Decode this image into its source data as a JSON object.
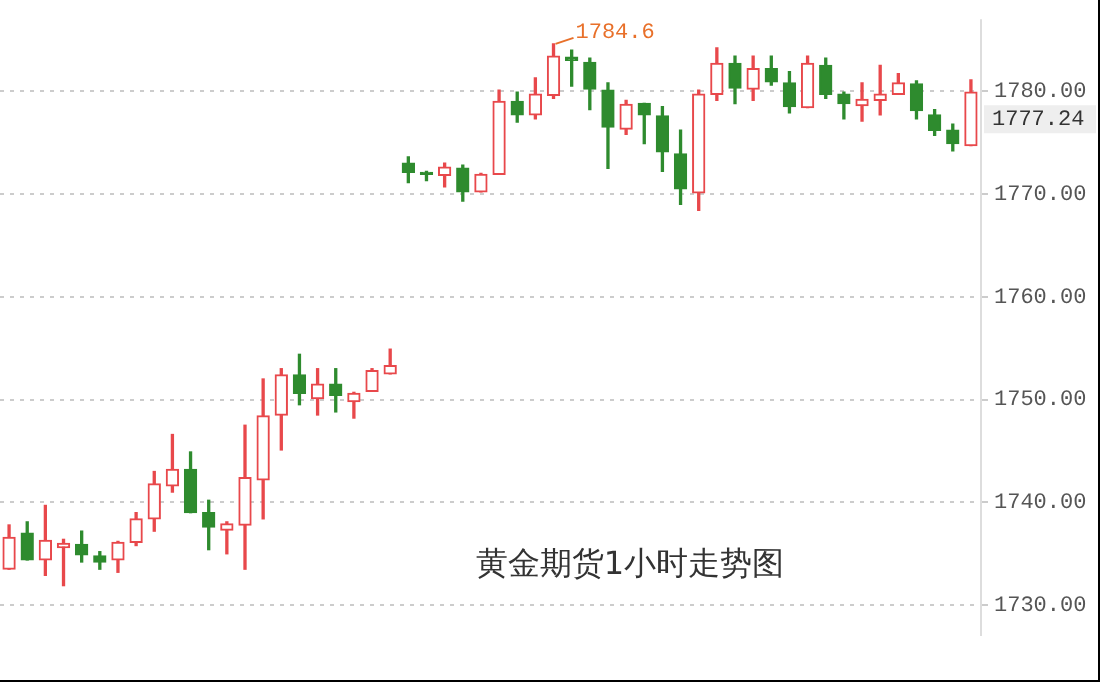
{
  "chart_data": {
    "type": "candlestick",
    "categories": [
      null,
      null,
      null,
      null,
      null,
      null,
      null,
      null,
      null,
      null,
      null,
      null,
      null,
      null,
      null,
      null,
      null,
      null,
      null,
      null,
      null,
      null,
      null,
      null,
      null,
      null,
      null,
      null,
      null,
      null,
      null,
      null,
      null,
      null,
      null,
      null,
      null,
      null,
      null,
      null,
      null,
      null,
      null,
      null,
      null,
      null,
      null,
      null,
      null,
      null,
      null,
      null,
      null,
      null
    ],
    "ohlc": [
      [
        1733.5,
        1737.8,
        1733.5,
        1736.6
      ],
      [
        1737.0,
        1738.1,
        1734.4,
        1734.4
      ],
      [
        1734.4,
        1739.7,
        1732.9,
        1736.3
      ],
      [
        1735.6,
        1736.4,
        1731.9,
        1736.0
      ],
      [
        1735.9,
        1737.2,
        1734.2,
        1734.9
      ],
      [
        1734.8,
        1735.2,
        1733.5,
        1734.2
      ],
      [
        1734.4,
        1736.2,
        1733.2,
        1736.1
      ],
      [
        1736.1,
        1739.0,
        1735.8,
        1738.4
      ],
      [
        1738.4,
        1743.0,
        1737.2,
        1741.8
      ],
      [
        1741.6,
        1746.6,
        1741.0,
        1743.2
      ],
      [
        1743.2,
        1744.9,
        1739.0,
        1739.0
      ],
      [
        1739.0,
        1740.2,
        1735.4,
        1737.6
      ],
      [
        1737.3,
        1738.1,
        1735.0,
        1737.9
      ],
      [
        1737.8,
        1747.5,
        1733.5,
        1742.4
      ],
      [
        1742.2,
        1752.0,
        1738.4,
        1748.4
      ],
      [
        1748.5,
        1753.0,
        1745.1,
        1752.4
      ],
      [
        1752.4,
        1754.4,
        1749.5,
        1750.6
      ],
      [
        1750.1,
        1753.0,
        1748.5,
        1751.5
      ],
      [
        1751.5,
        1753.0,
        1748.8,
        1750.4
      ],
      [
        1749.8,
        1750.7,
        1748.2,
        1750.6
      ],
      [
        1750.8,
        1753.0,
        1750.8,
        1752.8
      ],
      [
        1752.5,
        1754.9,
        1752.5,
        1753.3
      ],
      [
        1773.0,
        1773.6,
        1771.1,
        1772.1
      ],
      [
        1772.0,
        1772.2,
        1771.3,
        1771.9
      ],
      [
        1771.8,
        1773.0,
        1770.7,
        1772.6
      ],
      [
        1772.5,
        1772.8,
        1769.3,
        1770.2
      ],
      [
        1770.2,
        1772.0,
        1770.2,
        1771.9
      ],
      [
        1771.9,
        1780.1,
        1771.9,
        1779.0
      ],
      [
        1779.0,
        1779.9,
        1777.0,
        1777.7
      ],
      [
        1777.7,
        1781.3,
        1777.3,
        1779.7
      ],
      [
        1779.6,
        1784.6,
        1779.3,
        1783.4
      ],
      [
        1783.3,
        1784.0,
        1780.5,
        1783.0
      ],
      [
        1782.8,
        1783.2,
        1778.2,
        1780.2
      ],
      [
        1780.1,
        1780.8,
        1772.5,
        1776.5
      ],
      [
        1776.3,
        1779.1,
        1775.8,
        1778.7
      ],
      [
        1778.8,
        1778.8,
        1774.9,
        1777.7
      ],
      [
        1777.6,
        1778.5,
        1772.2,
        1774.1
      ],
      [
        1773.9,
        1776.2,
        1769.0,
        1770.5
      ],
      [
        1770.1,
        1780.1,
        1768.4,
        1779.7
      ],
      [
        1779.7,
        1784.2,
        1779.1,
        1782.7
      ],
      [
        1782.7,
        1783.4,
        1778.8,
        1780.3
      ],
      [
        1780.2,
        1783.4,
        1779.1,
        1782.2
      ],
      [
        1782.2,
        1783.4,
        1780.6,
        1780.9
      ],
      [
        1780.8,
        1781.9,
        1777.9,
        1778.5
      ],
      [
        1778.4,
        1783.4,
        1778.4,
        1782.7
      ],
      [
        1782.5,
        1783.2,
        1779.3,
        1779.7
      ],
      [
        1779.7,
        1779.9,
        1777.3,
        1778.8
      ],
      [
        1778.6,
        1780.8,
        1777.1,
        1779.2
      ],
      [
        1779.1,
        1782.5,
        1777.7,
        1779.7
      ],
      [
        1779.7,
        1781.7,
        1779.7,
        1780.8
      ],
      [
        1780.7,
        1781.0,
        1777.3,
        1778.1
      ],
      [
        1777.7,
        1778.2,
        1775.7,
        1776.2
      ],
      [
        1776.2,
        1776.8,
        1774.2,
        1774.9
      ],
      [
        1774.7,
        1781.1,
        1774.7,
        1779.9
      ]
    ],
    "ylim": [
      1727,
      1787
    ],
    "yticks": [
      {
        "value": 1730,
        "label": "1730.00"
      },
      {
        "value": 1740,
        "label": "1740.00"
      },
      {
        "value": 1750,
        "label": "1750.00"
      },
      {
        "value": 1760,
        "label": "1760.00"
      },
      {
        "value": 1770,
        "label": "1770.00"
      },
      {
        "value": 1780,
        "label": "1780.00"
      }
    ],
    "grid": "y",
    "tick_labels": "y",
    "annotations": [
      "1784.6",
      "1777.24",
      "黄金期货1小时走势图"
    ]
  }
}
